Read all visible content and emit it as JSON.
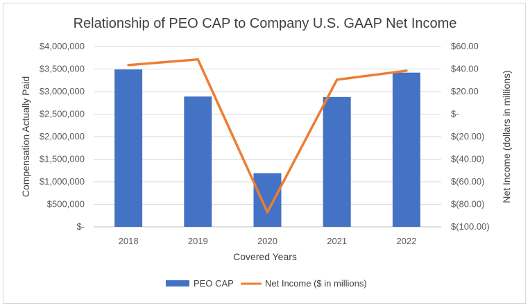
{
  "chart_data": {
    "type": "bar+line",
    "title": "Relationship of PEO CAP to Company U.S. GAAP Net Income",
    "categories": [
      "2018",
      "2019",
      "2020",
      "2021",
      "2022"
    ],
    "xlabel": "Covered Years",
    "ylabel_left": "Compensation Actually Paid",
    "ylabel_right": "Net Income (dollars in millions)",
    "ylim_left": [
      0,
      4000000
    ],
    "ylim_right": [
      -100,
      60
    ],
    "left_ticks": [
      "$-",
      "$500,000",
      "$1,000,000",
      "$1,500,000",
      "$2,000,000",
      "$2,500,000",
      "$3,000,000",
      "$3,500,000",
      "$4,000,000"
    ],
    "left_tick_values": [
      0,
      500000,
      1000000,
      1500000,
      2000000,
      2500000,
      3000000,
      3500000,
      4000000
    ],
    "right_ticks": [
      "$(100.00)",
      "$(80.00)",
      "$(60.00)",
      "$(40.00)",
      "$(20.00)",
      "$-",
      "$20.00",
      "$40.00",
      "$60.00"
    ],
    "right_tick_values": [
      -100,
      -80,
      -60,
      -40,
      -20,
      0,
      20,
      40,
      60
    ],
    "grid": true,
    "legend_position": "bottom",
    "series": [
      {
        "name": "PEO CAP",
        "type": "bar",
        "axis": "left",
        "color": "#4472c4",
        "values": [
          3490000,
          2890000,
          1190000,
          2880000,
          3420000
        ]
      },
      {
        "name": "Net Income ($ in millions)",
        "type": "line",
        "axis": "right",
        "color": "#ed7d31",
        "values": [
          43.5,
          48.5,
          -87,
          30.5,
          38.5
        ]
      }
    ]
  }
}
